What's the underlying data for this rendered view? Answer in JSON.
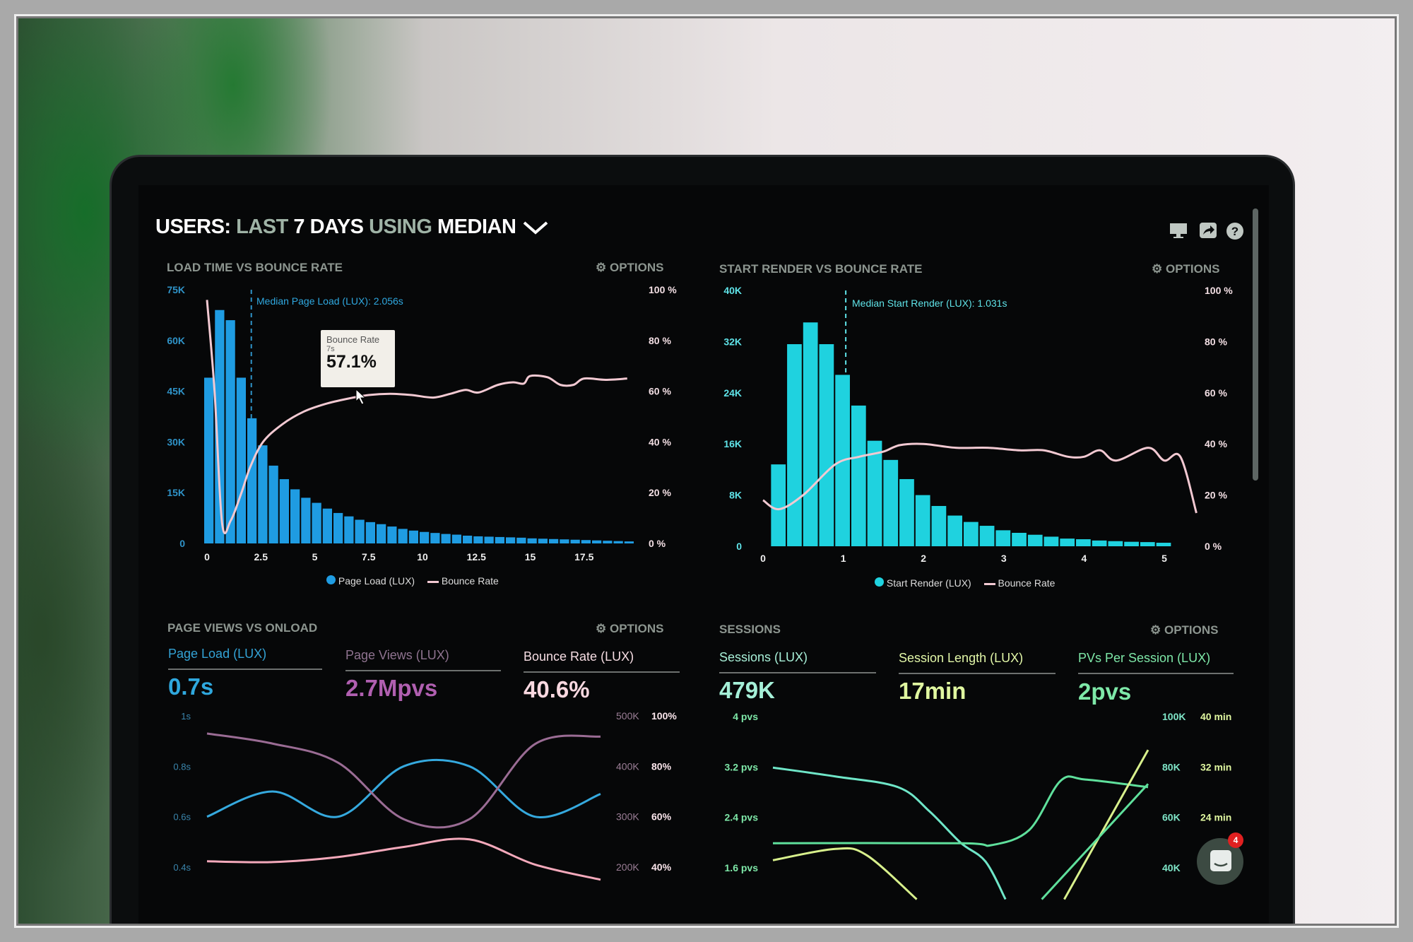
{
  "header": {
    "title_users": "USERS:",
    "title_range": "LAST",
    "title_days": "7 DAYS",
    "title_using": "USING",
    "title_median": "MEDIAN",
    "icons": [
      "monitor-icon",
      "share-icon",
      "help-icon"
    ],
    "help_glyph": "?"
  },
  "options_label": "OPTIONS",
  "panels": {
    "load_time": {
      "title": "LOAD TIME VS BOUNCE RATE",
      "median_label": "Median Page Load (LUX): 2.056s",
      "tooltip": {
        "title": "Bounce Rate",
        "sub": "7s",
        "value": "57.1%"
      },
      "legend": [
        "Page Load (LUX)",
        "Bounce Rate"
      ]
    },
    "start_render": {
      "title": "START RENDER VS BOUNCE RATE",
      "median_label": "Median Start Render (LUX): 1.031s",
      "legend": [
        "Start Render (LUX)",
        "Bounce Rate"
      ]
    },
    "page_views": {
      "title": "PAGE VIEWS VS ONLOAD",
      "metrics": [
        {
          "label": "Page Load (LUX)",
          "value": "0.7s"
        },
        {
          "label": "Page Views (LUX)",
          "value": "2.7Mpvs"
        },
        {
          "label": "Bounce Rate (LUX)",
          "value": "40.6%"
        }
      ]
    },
    "sessions": {
      "title": "SESSIONS",
      "metrics": [
        {
          "label": "Sessions (LUX)",
          "value": "479K"
        },
        {
          "label": "Session Length (LUX)",
          "value": "17min"
        },
        {
          "label": "PVs Per Session (LUX)",
          "value": "2pvs"
        }
      ]
    }
  },
  "chat": {
    "badge": "4"
  },
  "colors": {
    "bars_blue": "#1f9ce2",
    "bars_cyan": "#1fd2df",
    "bounce": "#f2c9d2",
    "page_load": "#35a9de",
    "page_views": "#9a6c94",
    "bounce_rate": "#f4a9bb",
    "teal": "#6fe6c8",
    "green": "#5fe09c",
    "yellow": "#d8f08c"
  },
  "chart_data": [
    {
      "type": "bar",
      "panel": "LOAD TIME VS BOUNCE RATE",
      "xlabel": "",
      "x_ticks": [
        "0",
        "2.5",
        "5",
        "7.5",
        "10",
        "12.5",
        "15",
        "17.5"
      ],
      "xlim": [
        0,
        19.5
      ],
      "bin_width": 0.5,
      "y_left": {
        "ticks": [
          "0",
          "15K",
          "30K",
          "45K",
          "60K",
          "75K"
        ],
        "ylim": [
          0,
          75000
        ]
      },
      "y_right": {
        "ticks": [
          "0 %",
          "20 %",
          "40 %",
          "60 %",
          "80 %",
          "100 %"
        ],
        "ylim": [
          0,
          100
        ]
      },
      "median": 2.056,
      "series": [
        {
          "name": "Page Load (LUX)",
          "type": "bar",
          "values": [
            49000,
            69000,
            66000,
            49000,
            37000,
            29000,
            23000,
            19000,
            16000,
            13500,
            12000,
            10300,
            9000,
            8000,
            7000,
            6300,
            5700,
            5000,
            4300,
            3800,
            3400,
            3100,
            2800,
            2600,
            2300,
            2100,
            2000,
            1900,
            1800,
            1700,
            1500,
            1400,
            1300,
            1200,
            1100,
            1000,
            900,
            800,
            700,
            600
          ]
        },
        {
          "name": "Bounce Rate",
          "type": "line",
          "points": [
            [
              0,
              96
            ],
            [
              0.35,
              60
            ],
            [
              0.7,
              8
            ],
            [
              1.1,
              9
            ],
            [
              1.6,
              20
            ],
            [
              2,
              30
            ],
            [
              2.6,
              40
            ],
            [
              3.5,
              47
            ],
            [
              4.5,
              52
            ],
            [
              5.5,
              55
            ],
            [
              6.5,
              57
            ],
            [
              7.5,
              58.5
            ],
            [
              8.5,
              59
            ],
            [
              9.5,
              58.5
            ],
            [
              10.5,
              57.5
            ],
            [
              11.3,
              59
            ],
            [
              12,
              60.5
            ],
            [
              12.6,
              59.5
            ],
            [
              13.5,
              62.5
            ],
            [
              14.2,
              63.5
            ],
            [
              14.7,
              63
            ],
            [
              15,
              66
            ],
            [
              15.8,
              65.5
            ],
            [
              16.4,
              62.5
            ],
            [
              17,
              62.5
            ],
            [
              17.5,
              65
            ],
            [
              18.5,
              64.5
            ],
            [
              19.5,
              65
            ]
          ]
        }
      ]
    },
    {
      "type": "bar",
      "panel": "START RENDER VS BOUNCE RATE",
      "xlabel": "",
      "x_ticks": [
        "0",
        "1",
        "2",
        "3",
        "4",
        "5"
      ],
      "xlim": [
        0,
        5.3
      ],
      "bin_width": 0.2,
      "y_left": {
        "ticks": [
          "0",
          "8K",
          "16K",
          "24K",
          "32K",
          "40K"
        ],
        "ylim": [
          0,
          40000
        ]
      },
      "y_right": {
        "ticks": [
          "0 %",
          "20 %",
          "40 %",
          "60 %",
          "80 %",
          "100 %"
        ],
        "ylim": [
          0,
          100
        ]
      },
      "median": 1.031,
      "series": [
        {
          "name": "Start Render (LUX)",
          "type": "bar",
          "values": [
            12800,
            31600,
            35000,
            31600,
            26800,
            22000,
            16500,
            13500,
            10500,
            8000,
            6300,
            4800,
            3800,
            3200,
            2500,
            2100,
            1800,
            1500,
            1200,
            1100,
            900,
            800,
            700,
            650,
            550
          ]
        },
        {
          "name": "Bounce Rate",
          "type": "line",
          "points": [
            [
              0,
              18
            ],
            [
              0.2,
              14.5
            ],
            [
              0.5,
              20
            ],
            [
              0.9,
              32
            ],
            [
              1.2,
              35
            ],
            [
              1.5,
              37
            ],
            [
              1.7,
              39.5
            ],
            [
              2,
              40
            ],
            [
              2.4,
              38.5
            ],
            [
              2.8,
              38.5
            ],
            [
              3.2,
              37.5
            ],
            [
              3.5,
              37.5
            ],
            [
              3.8,
              35
            ],
            [
              4,
              35
            ],
            [
              4.2,
              37.5
            ],
            [
              4.4,
              33.5
            ],
            [
              4.8,
              38.5
            ],
            [
              5,
              33.5
            ],
            [
              5.2,
              35
            ],
            [
              5.4,
              13
            ]
          ]
        }
      ]
    },
    {
      "type": "line",
      "panel": "PAGE VIEWS VS ONLOAD",
      "y_left": {
        "ticks": [
          "0.4s",
          "0.6s",
          "0.8s",
          "1s"
        ],
        "ylim": [
          0.4,
          1.0
        ]
      },
      "y_right_views": {
        "ticks": [
          "200K",
          "300K",
          "400K",
          "500K"
        ],
        "ylim": [
          200000,
          500000
        ]
      },
      "y_right_rate": {
        "ticks": [
          "40%",
          "60%",
          "80%",
          "100%"
        ],
        "ylim": [
          40,
          100
        ]
      },
      "series": [
        {
          "name": "Page Load (LUX)",
          "axis": "left",
          "values": [
            0.6,
            0.7,
            0.6,
            0.8,
            0.8,
            0.6,
            0.69
          ]
        },
        {
          "name": "Page Views (LUX)",
          "axis": "views",
          "values": [
            465000,
            445000,
            407000,
            295000,
            295000,
            444000,
            459000
          ]
        },
        {
          "name": "Bounce Rate (LUX)",
          "axis": "rate",
          "values": [
            42.3,
            42,
            44,
            48,
            51,
            41,
            35
          ]
        }
      ]
    },
    {
      "type": "line",
      "panel": "SESSIONS",
      "y_left": {
        "ticks": [
          "1.6 pvs",
          "2.4 pvs",
          "3.2 pvs",
          "4 pvs"
        ],
        "ylim": [
          1.6,
          4
        ]
      },
      "y_right_sessions": {
        "ticks": [
          "40K",
          "60K",
          "80K",
          "100K"
        ],
        "ylim": [
          40000,
          100000
        ]
      },
      "y_right_length": {
        "ticks": [
          "24 min",
          "32 min",
          "40 min"
        ],
        "ylim": [
          16,
          40
        ]
      },
      "series": [
        {
          "color": "teal",
          "points": [
            [
              0,
              3.19
            ],
            [
              1,
              3.05
            ],
            [
              2,
              2.88
            ],
            [
              2.5,
              2.5
            ],
            [
              3,
              2.0
            ],
            [
              3.4,
              1.7
            ],
            [
              3.72,
              1.1
            ]
          ]
        },
        {
          "color": "green",
          "points": [
            [
              0,
              1.99
            ],
            [
              3,
              1.99
            ],
            [
              3.5,
              1.96
            ],
            [
              4.1,
              2.2
            ],
            [
              4.6,
              2.98
            ],
            [
              5,
              3.0
            ],
            [
              6,
              2.88
            ]
          ]
        },
        {
          "color": "yellow",
          "points": [
            [
              0,
              1.72
            ],
            [
              1,
              1.9
            ],
            [
              1.5,
              1.8
            ],
            [
              2.3,
              1.1
            ]
          ]
        },
        {
          "color": "yellow",
          "points": [
            [
              4.66,
              1.1
            ],
            [
              6,
              3.47
            ]
          ]
        },
        {
          "color": "green",
          "points": [
            [
              4.3,
              1.1
            ],
            [
              6,
              2.93
            ]
          ]
        }
      ]
    }
  ]
}
